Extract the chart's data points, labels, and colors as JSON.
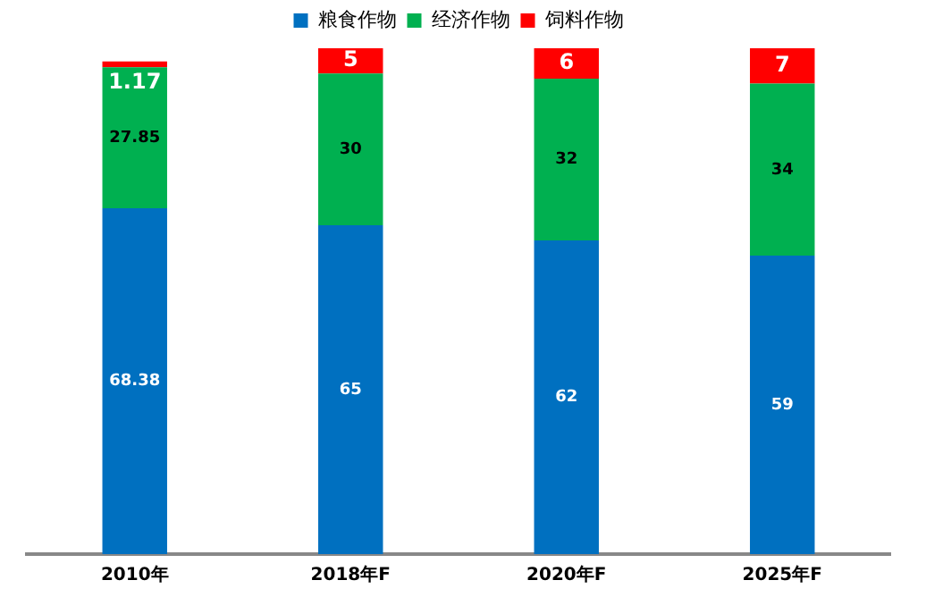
{
  "chart_data": {
    "type": "bar",
    "stacked": true,
    "categories": [
      "2010年",
      "2018年F",
      "2020年F",
      "2025年F"
    ],
    "series": [
      {
        "name": "粮食作物",
        "color": "#0070c0",
        "values": [
          68.38,
          65,
          62,
          59
        ]
      },
      {
        "name": "经济作物",
        "color": "#00b050",
        "values": [
          27.85,
          30,
          32,
          34
        ]
      },
      {
        "name": "饲料作物",
        "color": "#ff0000",
        "values": [
          1.17,
          5,
          6,
          7
        ]
      }
    ],
    "data_labels": true,
    "legend": "top",
    "grid": false
  }
}
